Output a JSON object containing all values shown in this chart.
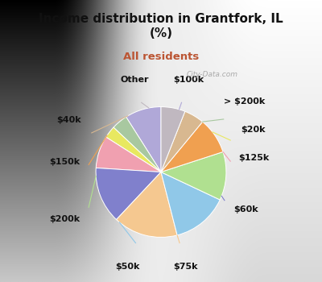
{
  "title": "Income distribution in Grantfork, IL\n(%)",
  "subtitle": "All residents",
  "labels": [
    "$100k",
    "> $200k",
    "$20k",
    "$125k",
    "$60k",
    "$75k",
    "$50k",
    "$200k",
    "$150k",
    "$40k",
    "Other"
  ],
  "sizes": [
    9,
    4,
    3,
    8,
    14,
    16,
    14,
    12,
    9,
    5,
    6
  ],
  "colors": [
    "#b0a8d8",
    "#a8c8a0",
    "#e8e860",
    "#f0a0b0",
    "#8080cc",
    "#f5c890",
    "#90c8e8",
    "#b0e090",
    "#f0a050",
    "#d8b890",
    "#c0b8c0"
  ],
  "bg_top": "#00eeff",
  "bg_bottom": "#c8ecd8",
  "title_color": "#111111",
  "subtitle_color": "#bb5533",
  "startangle": 90,
  "label_fontsize": 8.0,
  "watermark": "City-Data.com"
}
